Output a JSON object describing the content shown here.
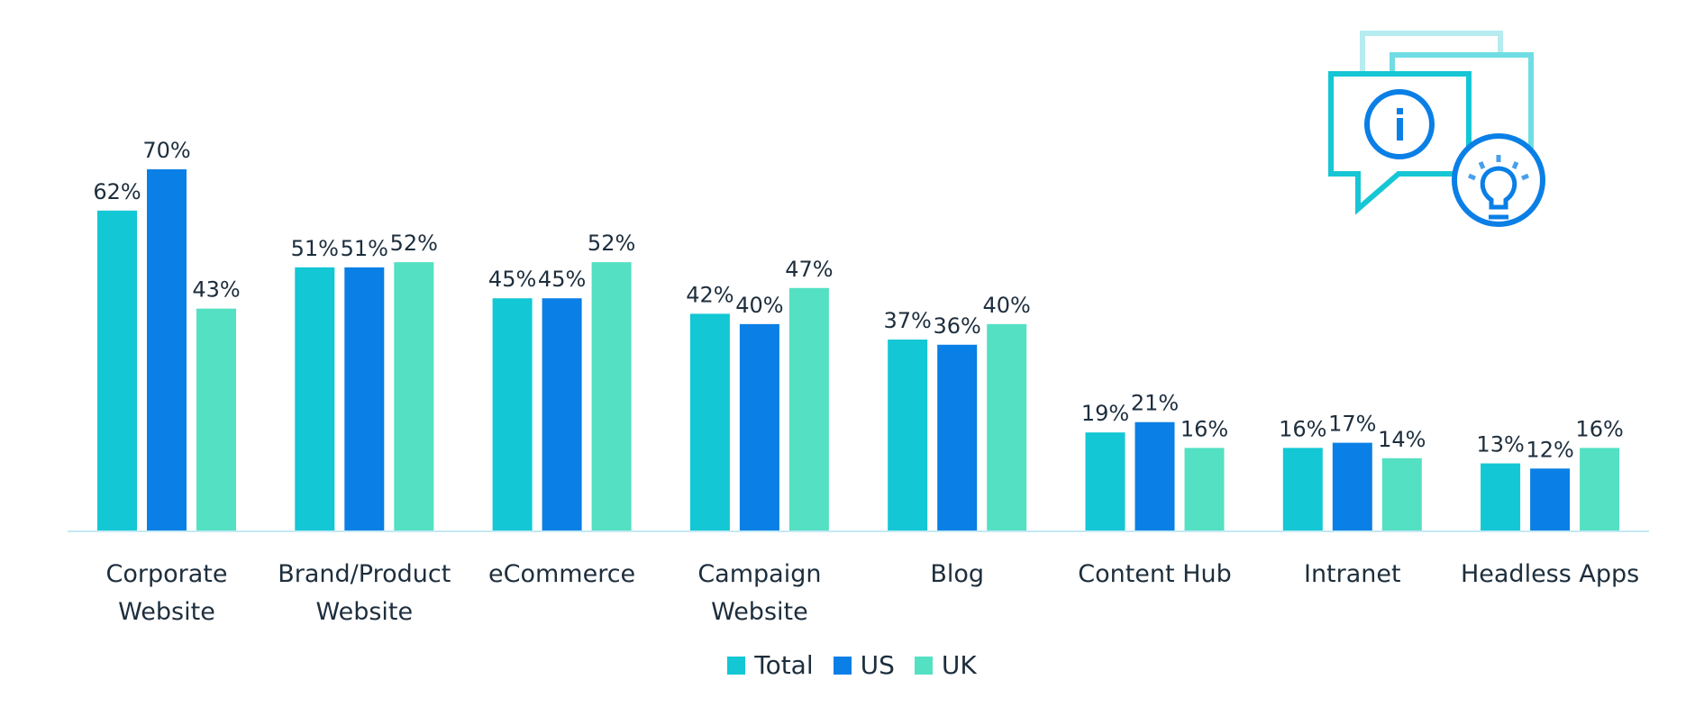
{
  "chart_data": {
    "type": "bar",
    "categories": [
      [
        "Corporate",
        "Website"
      ],
      [
        "Brand/Product",
        "Website"
      ],
      [
        "eCommerce"
      ],
      [
        "Campaign",
        "Website"
      ],
      [
        "Blog"
      ],
      [
        "Content Hub"
      ],
      [
        "Intranet"
      ],
      [
        "Headless Apps"
      ]
    ],
    "series": [
      {
        "name": "Total",
        "color": "#13c7d4",
        "values": [
          62,
          51,
          45,
          42,
          37,
          19,
          16,
          13
        ]
      },
      {
        "name": "US",
        "color": "#0a7fe6",
        "values": [
          70,
          51,
          45,
          40,
          36,
          21,
          17,
          12
        ]
      },
      {
        "name": "UK",
        "color": "#54e0c3",
        "values": [
          43,
          52,
          52,
          47,
          40,
          16,
          14,
          16
        ]
      }
    ],
    "value_suffix": "%",
    "ylim": [
      0,
      70
    ],
    "grid": false,
    "legend_position": "bottom",
    "baseline_color": "#c5e9f2"
  },
  "decoration": {
    "icon": "chat-bubbles-info-lightbulb-icon"
  }
}
